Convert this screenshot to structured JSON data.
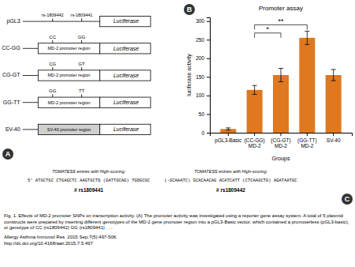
{
  "chart_data": {
    "type": "bar",
    "title": "Promoter assay",
    "xlabel": "Groups",
    "ylabel": "luciferase activity",
    "categories": [
      "pGL3-Basic",
      "(CC-GG)\nMD-2",
      "(CG-GT)\nMD-2",
      "(GG-TT)\nMD-2",
      "SV-40"
    ],
    "values": [
      10,
      115,
      155,
      255,
      155
    ],
    "errors": [
      3,
      12,
      18,
      18,
      15
    ],
    "color": "#E07820",
    "ylim": [
      0,
      310
    ],
    "yticks": [
      0,
      50,
      100,
      150,
      200,
      250,
      300
    ],
    "grid": false,
    "annotations": [
      {
        "text": "**",
        "from": "(CC-GG)\nMD-2",
        "to": "(GG-TT)\nMD-2",
        "y": 290
      },
      {
        "text": "*",
        "from": "(CC-GG)\nMD-2",
        "to": "(CG-GT)\nMD-2",
        "y": 268
      },
      {
        "text": "pGL3"
      },
      {
        "text": "rs-1809442"
      },
      {
        "text": "rs-1809441"
      },
      {
        "text": "Luciferase"
      },
      {
        "text": "CC-GG"
      },
      {
        "text": "MD-2 promoter region"
      },
      {
        "text": "CC"
      },
      {
        "text": "GG"
      },
      {
        "text": "Luciferase"
      },
      {
        "text": "CG-GT"
      },
      {
        "text": "MD-2 promoter region"
      },
      {
        "text": "CG"
      },
      {
        "text": "GT"
      },
      {
        "text": "Luciferase"
      },
      {
        "text": "GG-TT"
      },
      {
        "text": "MD-2 promoter region"
      },
      {
        "text": "GG"
      },
      {
        "text": "TT"
      },
      {
        "text": "Luciferase"
      },
      {
        "text": "SV-40"
      },
      {
        "text": "SV-40 promoter region"
      },
      {
        "text": "Luciferase"
      },
      {
        "text": "A"
      },
      {
        "text": "B"
      },
      {
        "text": "C"
      },
      {
        "text": "TOMATESS entries with High-scoring:"
      },
      {
        "text": "5' ATGCTGC CTGAGCTC AAGTGCTS (GATTGCAG) TGOGCGC"
      },
      {
        "text": "# rs1809441"
      },
      {
        "text": "TOMATESS entries with High-scoring:"
      },
      {
        "text": "(-GCAAATC) GCACAACAG ACATCATT (CTCAAGCTG) AGATAATGC"
      },
      {
        "text": "# rs1809442"
      },
      {
        "text": "Fig. 1. Effects of MD-2 promoter SNPs on transcription activity. (A) The promoter activity was investigated using a reporter gene assay system. A total of 5 plasmid constructs were prepared by inserting different genotypes of the MD-2 gene promoter region into a pGL3-Basic vector, which contained a promoterless (pGL3-basic), or genotype of CC (rs1809442) GG (rs1809441) . . ."
      },
      {
        "text": "Allergy Asthma Immunol Res. 2015 Sep;7(5):497-506."
      },
      {
        "text": "http://dx.doi.org/10.4168/aair.2015.7.5.497"
      }
    ]
  }
}
